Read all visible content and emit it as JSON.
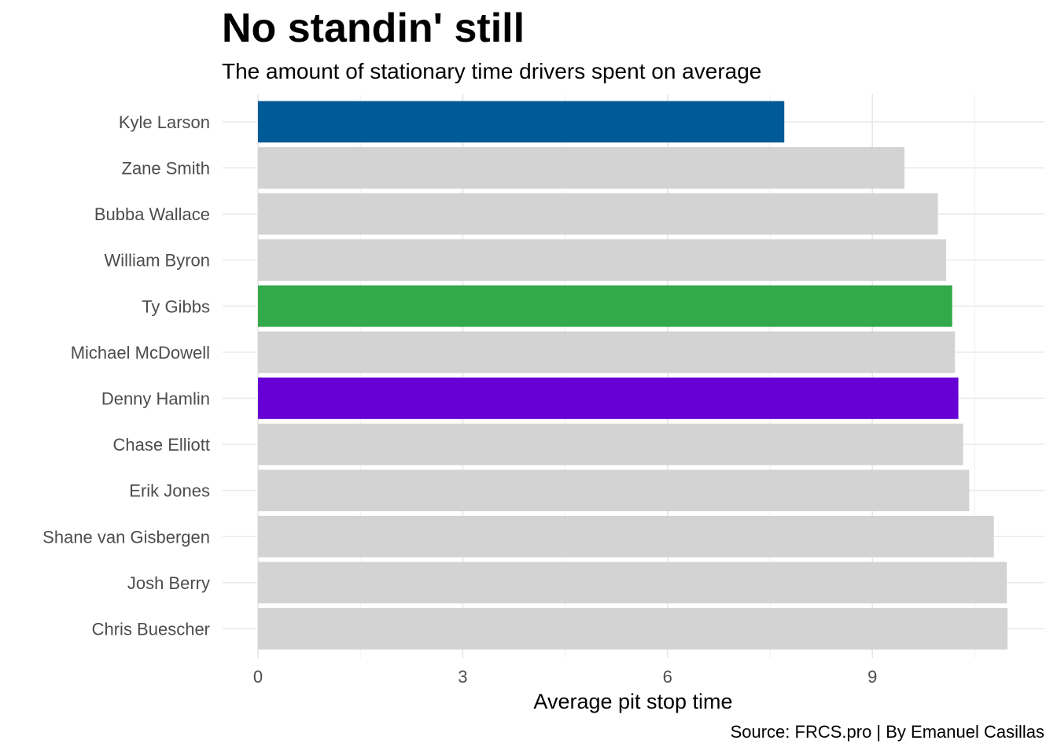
{
  "chart_data": {
    "type": "bar",
    "orientation": "horizontal",
    "title": "No standin' still",
    "subtitle": "The amount of stationary time drivers spent on average",
    "xlabel": "Average pit stop time",
    "ylabel": "",
    "caption": "Source: FRCS.pro | By Emanuel Casillas",
    "xlim": [
      0,
      11.2
    ],
    "xticks": [
      0,
      3,
      6,
      9
    ],
    "grid": true,
    "legend": "none",
    "categories": [
      "Kyle Larson",
      "Zane Smith",
      "Bubba Wallace",
      "William Byron",
      "Ty Gibbs",
      "Michael McDowell",
      "Denny Hamlin",
      "Chase Elliott",
      "Erik Jones",
      "Shane van Gisbergen",
      "Josh Berry",
      "Chris Buescher"
    ],
    "values": [
      7.71,
      9.47,
      9.96,
      10.08,
      10.17,
      10.21,
      10.26,
      10.33,
      10.42,
      10.78,
      10.97,
      10.98
    ],
    "colors": [
      "#005A96",
      "#D3D3D3",
      "#D3D3D3",
      "#D3D3D3",
      "#32A94A",
      "#D3D3D3",
      "#6600D5",
      "#D3D3D3",
      "#D3D3D3",
      "#D3D3D3",
      "#D3D3D3",
      "#D3D3D3"
    ]
  }
}
